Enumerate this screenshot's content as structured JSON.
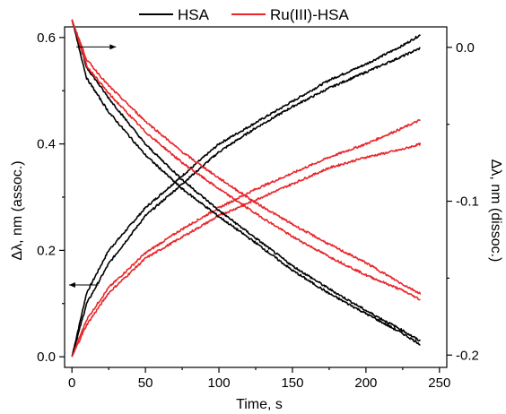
{
  "chart_data": {
    "type": "line",
    "xlabel": "Time, s",
    "ylabel_left": "Δλ, nm (assoc.)",
    "ylabel_right": "Δλ, nm (dissoc.)",
    "xlim": [
      -5,
      255
    ],
    "ylim_left": [
      -0.02,
      0.62
    ],
    "ylim_right": [
      -0.208,
      0.0133
    ],
    "x_ticks": [
      0,
      50,
      100,
      150,
      200,
      250
    ],
    "x_tick_labels": [
      "0",
      "50",
      "100",
      "150",
      "200",
      "250"
    ],
    "left_ticks": [
      0.0,
      0.2,
      0.4,
      0.6
    ],
    "left_tick_labels": [
      "0.0",
      "0.2",
      "0.4",
      "0.6"
    ],
    "right_ticks": [
      0.0,
      -0.1,
      -0.2
    ],
    "right_tick_labels": [
      "0.0",
      "-0.1",
      "-0.2"
    ],
    "legend_placement": "top-center",
    "legend": [
      {
        "name": "HSA",
        "color": "#000000"
      },
      {
        "name": "Ru(III)-HSA",
        "color": "#e8262a"
      }
    ],
    "series": [
      {
        "legend": "HSA",
        "axis": "left",
        "phase": "association",
        "color": "#000000",
        "x": [
          0,
          10,
          25,
          50,
          75,
          100,
          125,
          150,
          175,
          200,
          225,
          237
        ],
        "y": [
          0.0,
          0.12,
          0.2,
          0.28,
          0.34,
          0.4,
          0.44,
          0.48,
          0.52,
          0.55,
          0.585,
          0.605
        ]
      },
      {
        "legend": "HSA",
        "axis": "left",
        "phase": "association",
        "color": "#000000",
        "x": [
          0,
          10,
          25,
          50,
          75,
          100,
          125,
          150,
          175,
          200,
          225,
          237
        ],
        "y": [
          0.0,
          0.1,
          0.175,
          0.265,
          0.325,
          0.385,
          0.43,
          0.47,
          0.505,
          0.535,
          0.565,
          0.58
        ]
      },
      {
        "legend": "Ru(III)-HSA",
        "axis": "left",
        "phase": "association",
        "color": "#e8262a",
        "x": [
          0,
          10,
          25,
          50,
          75,
          100,
          125,
          150,
          175,
          200,
          225,
          237
        ],
        "y": [
          0.0,
          0.07,
          0.13,
          0.195,
          0.24,
          0.28,
          0.315,
          0.345,
          0.375,
          0.4,
          0.43,
          0.445
        ]
      },
      {
        "legend": "Ru(III)-HSA",
        "axis": "left",
        "phase": "association",
        "color": "#e8262a",
        "x": [
          0,
          10,
          25,
          50,
          75,
          100,
          125,
          150,
          175,
          200,
          225,
          237
        ],
        "y": [
          0.0,
          0.06,
          0.12,
          0.185,
          0.225,
          0.265,
          0.295,
          0.325,
          0.355,
          0.375,
          0.39,
          0.4
        ]
      },
      {
        "legend": "HSA",
        "axis": "right",
        "phase": "dissociation",
        "color": "#000000",
        "x": [
          0,
          10,
          25,
          50,
          75,
          100,
          125,
          150,
          175,
          200,
          225,
          237
        ],
        "y": [
          0.018,
          -0.02,
          -0.042,
          -0.07,
          -0.092,
          -0.11,
          -0.127,
          -0.145,
          -0.16,
          -0.173,
          -0.186,
          -0.193
        ]
      },
      {
        "legend": "HSA",
        "axis": "right",
        "phase": "dissociation",
        "color": "#000000",
        "x": [
          0,
          10,
          25,
          50,
          75,
          100,
          125,
          150,
          175,
          200,
          225,
          237
        ],
        "y": [
          0.018,
          -0.013,
          -0.033,
          -0.063,
          -0.086,
          -0.106,
          -0.124,
          -0.142,
          -0.157,
          -0.171,
          -0.184,
          -0.191
        ]
      },
      {
        "legend": "Ru(III)-HSA",
        "axis": "right",
        "phase": "dissociation",
        "color": "#e8262a",
        "x": [
          0,
          10,
          25,
          50,
          75,
          100,
          125,
          150,
          175,
          200,
          225,
          237
        ],
        "y": [
          0.018,
          -0.008,
          -0.025,
          -0.048,
          -0.068,
          -0.085,
          -0.101,
          -0.115,
          -0.128,
          -0.14,
          -0.154,
          -0.16
        ]
      },
      {
        "legend": "Ru(III)-HSA",
        "axis": "right",
        "phase": "dissociation",
        "color": "#e8262a",
        "x": [
          0,
          10,
          25,
          50,
          75,
          100,
          125,
          150,
          175,
          200,
          225,
          237
        ],
        "y": [
          0.018,
          -0.012,
          -0.03,
          -0.055,
          -0.075,
          -0.092,
          -0.108,
          -0.123,
          -0.136,
          -0.148,
          -0.158,
          -0.164
        ]
      }
    ]
  }
}
